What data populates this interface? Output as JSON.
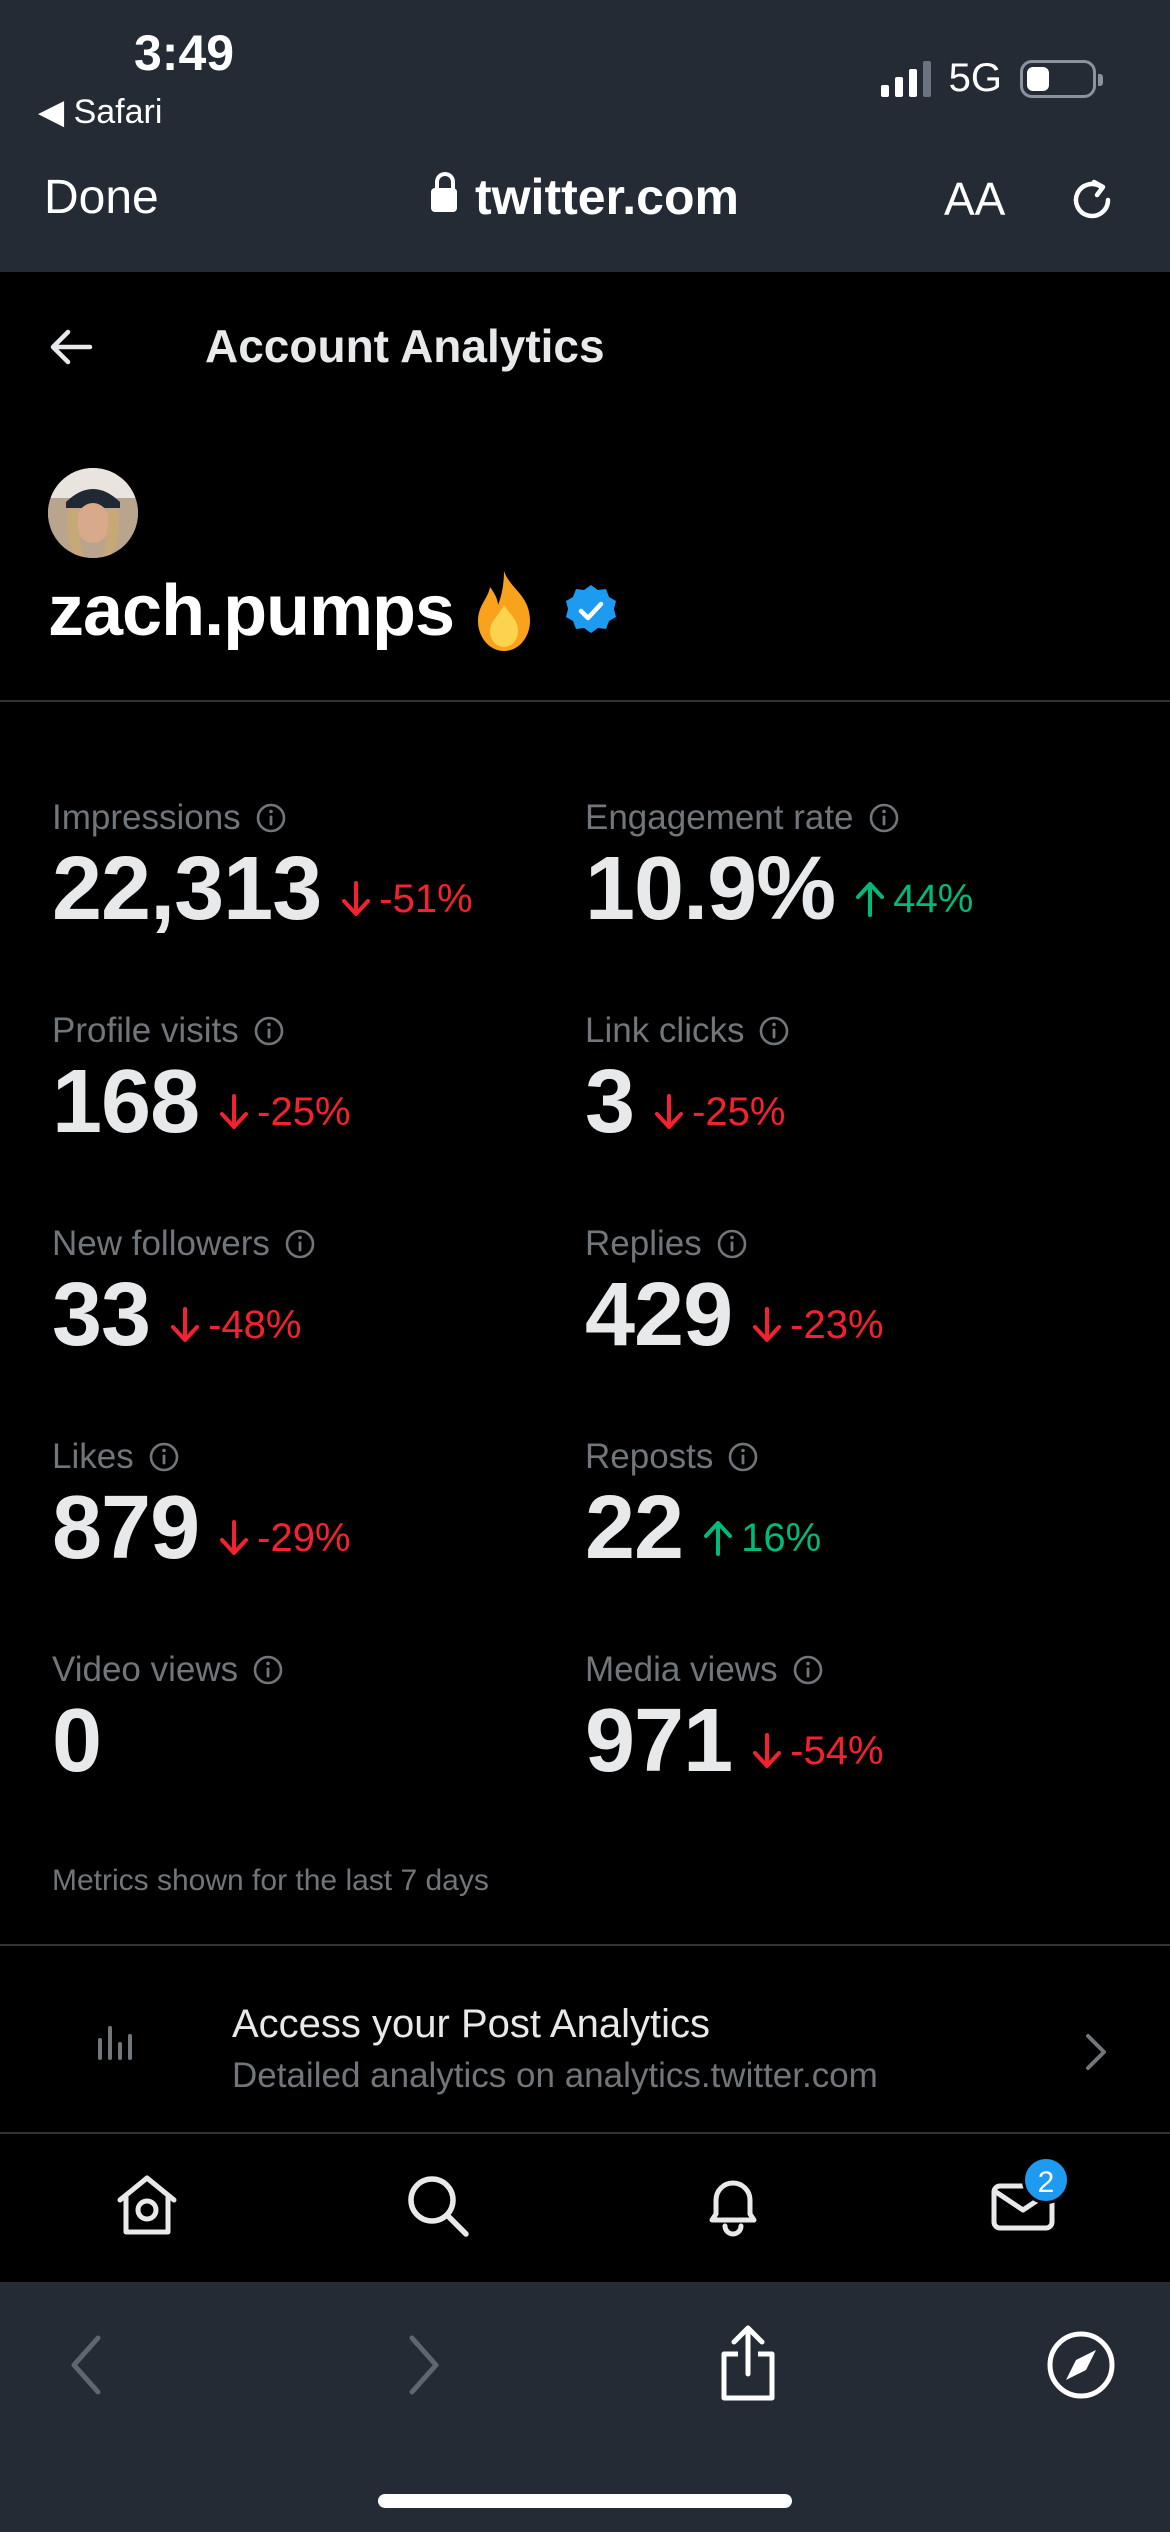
{
  "status_bar": {
    "time": "3:49",
    "back_app": "◀ Safari",
    "network": "5G"
  },
  "browser": {
    "done_label": "Done",
    "url": "twitter.com",
    "text_size_label": "AA"
  },
  "header": {
    "title": "Account Analytics"
  },
  "profile": {
    "username": "zach.pumps",
    "verified": true
  },
  "metrics": [
    {
      "label": "Impressions",
      "value": "22,313",
      "change": "-51%",
      "direction": "down"
    },
    {
      "label": "Engagement rate",
      "value": "10.9%",
      "change": "44%",
      "direction": "up"
    },
    {
      "label": "Profile visits",
      "value": "168",
      "change": "-25%",
      "direction": "down"
    },
    {
      "label": "Link clicks",
      "value": "3",
      "change": "-25%",
      "direction": "down"
    },
    {
      "label": "New followers",
      "value": "33",
      "change": "-48%",
      "direction": "down"
    },
    {
      "label": "Replies",
      "value": "429",
      "change": "-23%",
      "direction": "down"
    },
    {
      "label": "Likes",
      "value": "879",
      "change": "-29%",
      "direction": "down"
    },
    {
      "label": "Reposts",
      "value": "22",
      "change": "16%",
      "direction": "up"
    },
    {
      "label": "Video views",
      "value": "0",
      "change": "",
      "direction": "none"
    },
    {
      "label": "Media views",
      "value": "971",
      "change": "-54%",
      "direction": "down"
    }
  ],
  "footnote": "Metrics shown for the last 7 days",
  "post_analytics": {
    "title": "Access your Post Analytics",
    "subtitle": "Detailed analytics on analytics.twitter.com"
  },
  "bottom_nav": {
    "messages_badge": "2"
  },
  "colors": {
    "negative": "#f4212e",
    "positive": "#00ba7c",
    "accent": "#1d9bf0"
  }
}
